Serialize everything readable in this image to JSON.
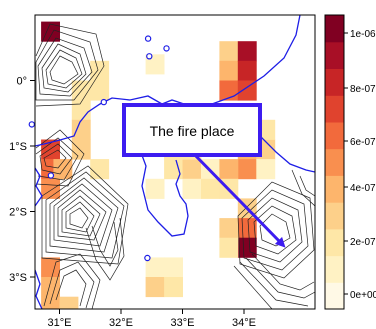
{
  "map": {
    "x_ticks": [
      "31°E",
      "32°E",
      "33°E",
      "34°E"
    ],
    "y_ticks": [
      "0°",
      "1°S",
      "2°S",
      "3°S"
    ],
    "colorbar_ticks": [
      "1e-06",
      "8e-07",
      "6e-07",
      "4e-07",
      "2e-07",
      "0e+00"
    ],
    "annotation": "The fire place",
    "palette": [
      "#fff9e6",
      "#fff2c4",
      "#fee7a7",
      "#fdd08a",
      "#fdb56c",
      "#f98f4f",
      "#f26a3c",
      "#e0432e",
      "#c72526",
      "#a80f26",
      "#800022"
    ],
    "grid_cells": [
      {
        "lon": 30.85,
        "lat": 0.75,
        "value": 1e-06
      },
      {
        "lon": 31.35,
        "lat": -0.15,
        "value": 2e-07
      },
      {
        "lon": 31.35,
        "lat": -0.45,
        "value": 1.5e-07
      },
      {
        "lon": 31.35,
        "lat": -0.75,
        "value": 2.5e-07
      },
      {
        "lon": 31.35,
        "lat": -1.05,
        "value": 3e-07
      },
      {
        "lon": 31.65,
        "lat": 0.15,
        "value": 1.5e-07
      },
      {
        "lon": 31.65,
        "lat": -0.15,
        "value": 2e-07
      },
      {
        "lon": 30.85,
        "lat": -1.05,
        "value": 6.5e-07
      },
      {
        "lon": 30.85,
        "lat": -1.35,
        "value": 6e-07
      },
      {
        "lon": 30.85,
        "lat": -1.65,
        "value": 5e-07
      },
      {
        "lon": 31.05,
        "lat": -1.35,
        "value": 4e-07
      },
      {
        "lon": 31.65,
        "lat": -1.35,
        "value": 2e-07
      },
      {
        "lon": 30.85,
        "lat": -2.85,
        "value": 5e-07
      },
      {
        "lon": 30.85,
        "lat": -3.15,
        "value": 4e-07
      },
      {
        "lon": 30.85,
        "lat": -3.45,
        "value": 3.5e-07
      },
      {
        "lon": 31.15,
        "lat": -3.45,
        "value": 2.5e-07
      },
      {
        "lon": 32.55,
        "lat": 0.25,
        "value": 5e-08
      },
      {
        "lon": 32.85,
        "lat": -1.35,
        "value": 2e-07
      },
      {
        "lon": 33.15,
        "lat": -1.35,
        "value": 3e-07
      },
      {
        "lon": 33.15,
        "lat": -1.05,
        "value": 1.5e-07
      },
      {
        "lon": 32.85,
        "lat": -1.05,
        "value": 1.5e-07
      },
      {
        "lon": 33.15,
        "lat": -1.65,
        "value": 1e-07
      },
      {
        "lon": 32.55,
        "lat": -1.65,
        "value": 1e-07
      },
      {
        "lon": 33.45,
        "lat": -1.35,
        "value": 1e-07
      },
      {
        "lon": 33.45,
        "lat": -1.65,
        "value": 2e-07
      },
      {
        "lon": 33.75,
        "lat": 0.45,
        "value": 3e-07
      },
      {
        "lon": 33.75,
        "lat": 0.15,
        "value": 3.5e-07
      },
      {
        "lon": 33.75,
        "lat": -0.15,
        "value": 5.5e-07
      },
      {
        "lon": 34.05,
        "lat": 0.45,
        "value": 9e-07
      },
      {
        "lon": 34.05,
        "lat": 0.15,
        "value": 7.5e-07
      },
      {
        "lon": 34.05,
        "lat": -0.15,
        "value": 6.5e-07
      },
      {
        "lon": 34.05,
        "lat": -1.05,
        "value": 4e-07
      },
      {
        "lon": 34.05,
        "lat": -1.35,
        "value": 5e-07
      },
      {
        "lon": 33.75,
        "lat": -1.35,
        "value": 3.5e-07
      },
      {
        "lon": 33.75,
        "lat": -1.65,
        "value": 1.5e-07
      },
      {
        "lon": 34.35,
        "lat": -1.05,
        "value": 2.5e-07
      },
      {
        "lon": 34.35,
        "lat": -1.35,
        "value": 1e-07
      },
      {
        "lon": 34.35,
        "lat": -0.75,
        "value": 1.5e-07
      },
      {
        "lon": 34.05,
        "lat": -1.95,
        "value": 2.5e-07
      },
      {
        "lon": 34.05,
        "lat": -2.25,
        "value": 6e-07
      },
      {
        "lon": 34.05,
        "lat": -2.55,
        "value": 9.5e-07
      },
      {
        "lon": 33.75,
        "lat": -2.25,
        "value": 2.5e-07
      },
      {
        "lon": 33.75,
        "lat": -2.55,
        "value": 2e-07
      },
      {
        "lon": 32.55,
        "lat": -2.85,
        "value": 1e-07
      },
      {
        "lon": 32.55,
        "lat": -3.15,
        "value": 2.5e-07
      },
      {
        "lon": 32.85,
        "lat": -2.85,
        "value": 1e-07
      },
      {
        "lon": 32.85,
        "lat": -3.15,
        "value": 1.5e-07
      }
    ],
    "lakes": [
      {
        "lon": 32.44,
        "lat": 0.64
      },
      {
        "lon": 32.46,
        "lat": 0.37
      },
      {
        "lon": 32.74,
        "lat": 0.49
      },
      {
        "lon": 31.72,
        "lat": -0.33
      },
      {
        "lon": 30.55,
        "lat": -0.67
      },
      {
        "lon": 30.86,
        "lat": -1.45
      },
      {
        "lon": 32.43,
        "lat": -2.71
      }
    ]
  }
}
